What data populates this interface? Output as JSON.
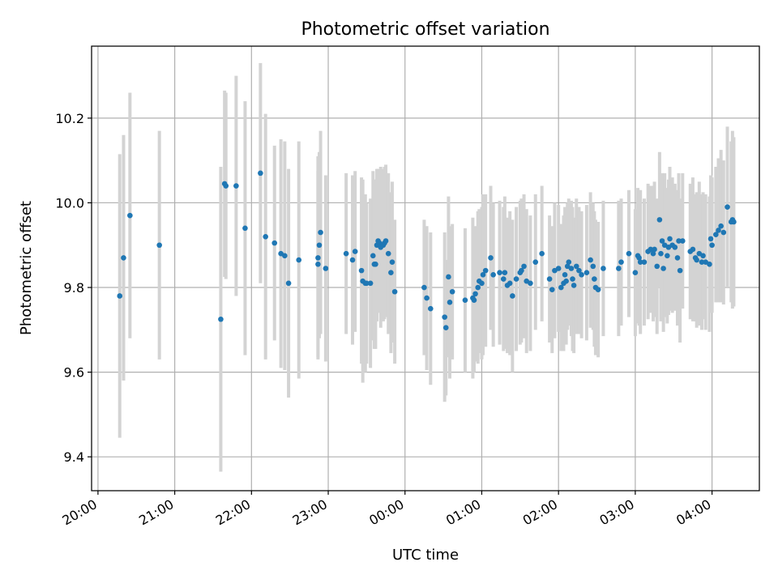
{
  "chart_data": {
    "type": "scatter",
    "title": "Photometric offset variation",
    "xlabel": "UTC time",
    "ylabel": "Photometric offset",
    "x_ticks": [
      "20:00",
      "21:00",
      "22:00",
      "23:00",
      "00:00",
      "01:00",
      "02:00",
      "03:00",
      "04:00"
    ],
    "y_ticks": [
      "9.4",
      "9.6",
      "9.8",
      "10.0",
      "10.2"
    ],
    "xlim": [
      "19:55",
      "04:37"
    ],
    "ylim": [
      9.32,
      10.37
    ],
    "grid": true,
    "colors": {
      "points": "#1f77b4",
      "errorbars": "#d3d3d3",
      "grid": "#b0b0b0"
    },
    "points": [
      [
        "20:17",
        9.78,
        0.335
      ],
      [
        "20:20",
        9.87,
        0.29
      ],
      [
        "20:25",
        9.97,
        0.29
      ],
      [
        "20:48",
        9.9,
        0.27
      ],
      [
        "21:36",
        9.725,
        0.36
      ],
      [
        "21:39",
        10.045,
        0.22
      ],
      [
        "21:40",
        10.04,
        0.22
      ],
      [
        "21:48",
        10.04,
        0.26
      ],
      [
        "21:55",
        9.94,
        0.3
      ],
      [
        "22:07",
        10.07,
        0.26
      ],
      [
        "22:11",
        9.92,
        0.29
      ],
      [
        "22:18",
        9.905,
        0.23
      ],
      [
        "22:23",
        9.88,
        0.27
      ],
      [
        "22:26",
        9.875,
        0.27
      ],
      [
        "22:29",
        9.81,
        0.27
      ],
      [
        "22:37",
        9.865,
        0.28
      ],
      [
        "22:52",
        9.87,
        0.24
      ],
      [
        "22:52",
        9.855,
        0.22
      ],
      [
        "22:53",
        9.9,
        0.22
      ],
      [
        "22:54",
        9.93,
        0.24
      ],
      [
        "22:58",
        9.845,
        0.22
      ],
      [
        "23:14",
        9.88,
        0.19
      ],
      [
        "23:19",
        9.865,
        0.2
      ],
      [
        "23:21",
        9.885,
        0.19
      ],
      [
        "23:26",
        9.84,
        0.22
      ],
      [
        "23:27",
        9.815,
        0.24
      ],
      [
        "23:29",
        9.81,
        0.21
      ],
      [
        "23:30",
        9.81,
        0.19
      ],
      [
        "23:33",
        9.81,
        0.2
      ],
      [
        "23:35",
        9.875,
        0.2
      ],
      [
        "23:36",
        9.855,
        0.2
      ],
      [
        "23:37",
        9.855,
        0.2
      ],
      [
        "23:38",
        9.9,
        0.18
      ],
      [
        "23:39",
        9.91,
        0.17
      ],
      [
        "23:40",
        9.905,
        0.16
      ],
      [
        "23:41",
        9.895,
        0.19
      ],
      [
        "23:43",
        9.9,
        0.18
      ],
      [
        "23:44",
        9.905,
        0.18
      ],
      [
        "23:45",
        9.91,
        0.18
      ],
      [
        "23:47",
        9.88,
        0.19
      ],
      [
        "23:49",
        9.835,
        0.19
      ],
      [
        "23:50",
        9.86,
        0.19
      ],
      [
        "23:52",
        9.79,
        0.17
      ],
      [
        "00:15",
        9.8,
        0.16
      ],
      [
        "00:17",
        9.775,
        0.17
      ],
      [
        "00:20",
        9.75,
        0.18
      ],
      [
        "00:31",
        9.73,
        0.2
      ],
      [
        "00:32",
        9.705,
        0.16
      ],
      [
        "00:34",
        9.825,
        0.19
      ],
      [
        "00:35",
        9.765,
        0.18
      ],
      [
        "00:37",
        9.79,
        0.16
      ],
      [
        "00:47",
        9.77,
        0.17
      ],
      [
        "00:53",
        9.775,
        0.19
      ],
      [
        "00:54",
        9.77,
        0.17
      ],
      [
        "00:55",
        9.785,
        0.16
      ],
      [
        "00:57",
        9.8,
        0.18
      ],
      [
        "00:58",
        9.815,
        0.17
      ],
      [
        "01:00",
        9.81,
        0.18
      ],
      [
        "01:01",
        9.83,
        0.19
      ],
      [
        "01:03",
        9.84,
        0.18
      ],
      [
        "01:07",
        9.87,
        0.17
      ],
      [
        "01:09",
        9.83,
        0.17
      ],
      [
        "01:14",
        9.835,
        0.17
      ],
      [
        "01:17",
        9.82,
        0.17
      ],
      [
        "01:18",
        9.835,
        0.18
      ],
      [
        "01:20",
        9.805,
        0.16
      ],
      [
        "01:22",
        9.81,
        0.17
      ],
      [
        "01:24",
        9.78,
        0.18
      ],
      [
        "01:27",
        9.82,
        0.17
      ],
      [
        "01:30",
        9.835,
        0.17
      ],
      [
        "01:31",
        9.84,
        0.17
      ],
      [
        "01:33",
        9.85,
        0.17
      ],
      [
        "01:35",
        9.815,
        0.17
      ],
      [
        "01:38",
        9.81,
        0.16
      ],
      [
        "01:42",
        9.86,
        0.16
      ],
      [
        "01:47",
        9.88,
        0.16
      ],
      [
        "01:53",
        9.82,
        0.15
      ],
      [
        "01:55",
        9.795,
        0.15
      ],
      [
        "01:57",
        9.84,
        0.16
      ],
      [
        "02:00",
        9.845,
        0.15
      ],
      [
        "02:02",
        9.8,
        0.15
      ],
      [
        "02:04",
        9.81,
        0.16
      ],
      [
        "02:05",
        9.83,
        0.16
      ],
      [
        "02:06",
        9.815,
        0.15
      ],
      [
        "02:07",
        9.85,
        0.15
      ],
      [
        "02:08",
        9.86,
        0.15
      ],
      [
        "02:10",
        9.845,
        0.16
      ],
      [
        "02:11",
        9.82,
        0.17
      ],
      [
        "02:12",
        9.805,
        0.16
      ],
      [
        "02:14",
        9.85,
        0.16
      ],
      [
        "02:16",
        9.84,
        0.15
      ],
      [
        "02:18",
        9.83,
        0.15
      ],
      [
        "02:22",
        9.835,
        0.16
      ],
      [
        "02:25",
        9.865,
        0.16
      ],
      [
        "02:27",
        9.85,
        0.15
      ],
      [
        "02:28",
        9.82,
        0.16
      ],
      [
        "02:29",
        9.8,
        0.16
      ],
      [
        "02:31",
        9.795,
        0.16
      ],
      [
        "02:35",
        9.845,
        0.16
      ],
      [
        "02:47",
        9.845,
        0.16
      ],
      [
        "02:49",
        9.86,
        0.15
      ],
      [
        "02:55",
        9.88,
        0.15
      ],
      [
        "03:00",
        9.835,
        0.15
      ],
      [
        "03:02",
        9.875,
        0.16
      ],
      [
        "03:03",
        9.87,
        0.16
      ],
      [
        "03:04",
        9.86,
        0.17
      ],
      [
        "03:07",
        9.86,
        0.15
      ],
      [
        "03:10",
        9.885,
        0.16
      ],
      [
        "03:12",
        9.89,
        0.15
      ],
      [
        "03:14",
        9.88,
        0.16
      ],
      [
        "03:15",
        9.89,
        0.16
      ],
      [
        "03:17",
        9.85,
        0.16
      ],
      [
        "03:19",
        9.96,
        0.16
      ],
      [
        "03:20",
        9.88,
        0.16
      ],
      [
        "03:21",
        9.91,
        0.16
      ],
      [
        "03:22",
        9.845,
        0.15
      ],
      [
        "03:23",
        9.9,
        0.17
      ],
      [
        "03:25",
        9.875,
        0.16
      ],
      [
        "03:26",
        9.895,
        0.16
      ],
      [
        "03:27",
        9.915,
        0.17
      ],
      [
        "03:29",
        9.9,
        0.16
      ],
      [
        "03:31",
        9.895,
        0.15
      ],
      [
        "03:33",
        9.87,
        0.16
      ],
      [
        "03:34",
        9.91,
        0.16
      ],
      [
        "03:35",
        9.84,
        0.17
      ],
      [
        "03:37",
        9.91,
        0.16
      ],
      [
        "03:43",
        9.885,
        0.16
      ],
      [
        "03:45",
        9.89,
        0.17
      ],
      [
        "03:47",
        9.87,
        0.15
      ],
      [
        "03:48",
        9.865,
        0.16
      ],
      [
        "03:50",
        9.88,
        0.17
      ],
      [
        "03:52",
        9.86,
        0.16
      ],
      [
        "03:53",
        9.875,
        0.15
      ],
      [
        "03:55",
        9.86,
        0.16
      ],
      [
        "03:58",
        9.855,
        0.16
      ],
      [
        "03:59",
        9.915,
        0.15
      ],
      [
        "04:00",
        9.9,
        0.16
      ],
      [
        "04:03",
        9.925,
        0.16
      ],
      [
        "04:05",
        9.935,
        0.17
      ],
      [
        "04:07",
        9.945,
        0.18
      ],
      [
        "04:09",
        9.93,
        0.17
      ],
      [
        "04:12",
        9.99,
        0.19
      ],
      [
        "04:15",
        9.955,
        0.19
      ],
      [
        "04:16",
        9.96,
        0.21
      ],
      [
        "04:17",
        9.955,
        0.2
      ]
    ]
  }
}
